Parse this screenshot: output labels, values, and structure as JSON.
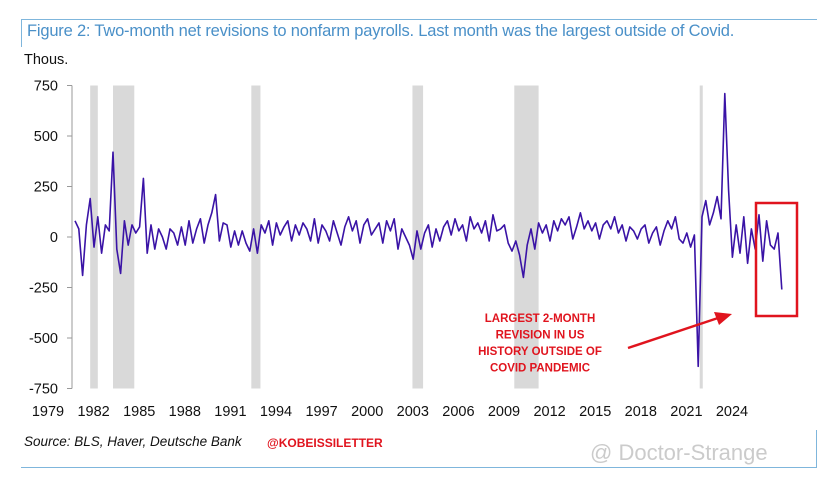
{
  "title": "Figure 2: Two-month net revisions to nonfarm payrolls. Last month was the largest outside of Covid.",
  "source": "Source: BLS, Haver, Deutsche Bank",
  "handle": "@KOBEISSILETTER",
  "watermark": "@ Doctor-Strange",
  "colors": {
    "line": "#3a13a6",
    "recession": "#d9d9d9",
    "annotation": "#e0141e",
    "title": "#4a90c8"
  },
  "chart_data": {
    "type": "line",
    "title": "Figure 2: Two-month net revisions to nonfarm payrolls. Last month was the largest outside of Covid.",
    "ylabel": "Thous.",
    "xlabel": "",
    "ylim": [
      -750,
      750
    ],
    "xlim": [
      1979,
      2025.5
    ],
    "yticks": [
      750,
      500,
      250,
      0,
      -250,
      -500,
      -750
    ],
    "ytick_labels": [
      "750",
      "500",
      "250",
      "0",
      "-250",
      "-500",
      "-750"
    ],
    "xticks": [
      "1979",
      "1982",
      "1985",
      "1988",
      "1991",
      "1994",
      "1997",
      "2000",
      "2003",
      "2006",
      "2009",
      "2012",
      "2015",
      "2018",
      "2021",
      "2024"
    ],
    "grid": false,
    "legend": "none",
    "recessions": [
      [
        1980.0,
        1980.5
      ],
      [
        1981.5,
        1982.9
      ],
      [
        1990.6,
        1991.2
      ],
      [
        2001.2,
        2001.9
      ],
      [
        2007.9,
        2009.5
      ],
      [
        2020.1,
        2020.3
      ]
    ],
    "x_start": 1979.0,
    "x_step": 0.25,
    "series": [
      {
        "name": "Two-month net revisions",
        "values": [
          80,
          40,
          -190,
          60,
          190,
          -50,
          100,
          -80,
          60,
          30,
          420,
          -60,
          -180,
          80,
          -40,
          60,
          20,
          50,
          290,
          -80,
          60,
          -60,
          40,
          0,
          -60,
          40,
          20,
          -40,
          50,
          -40,
          80,
          -30,
          40,
          90,
          -30,
          60,
          120,
          210,
          -20,
          70,
          60,
          -50,
          30,
          -40,
          30,
          -30,
          -70,
          40,
          -80,
          60,
          20,
          80,
          -40,
          70,
          10,
          50,
          80,
          -20,
          60,
          10,
          70,
          40,
          -20,
          90,
          -30,
          60,
          30,
          -20,
          80,
          20,
          -40,
          50,
          100,
          30,
          80,
          -30,
          60,
          90,
          10,
          40,
          70,
          -30,
          80,
          30,
          90,
          -60,
          40,
          0,
          -40,
          -110,
          30,
          -60,
          20,
          60,
          -50,
          40,
          -20,
          50,
          80,
          10,
          90,
          30,
          60,
          -20,
          100,
          40,
          70,
          20,
          80,
          -20,
          110,
          30,
          40,
          60,
          -30,
          -70,
          -20,
          -90,
          -200,
          -40,
          40,
          -60,
          70,
          20,
          60,
          -20,
          80,
          30,
          90,
          60,
          100,
          -10,
          50,
          120,
          40,
          80,
          30,
          70,
          -10,
          60,
          80,
          40,
          100,
          20,
          60,
          -20,
          50,
          30,
          -10,
          40,
          60,
          -30,
          20,
          50,
          -40,
          30,
          80,
          40,
          100,
          -10,
          -30,
          20,
          -50,
          10,
          -640,
          100,
          180,
          60,
          120,
          200,
          90,
          710,
          230,
          -100,
          60,
          -80,
          100,
          -130,
          40,
          -60,
          110,
          -120,
          80,
          -40,
          -60,
          20,
          -260
        ]
      }
    ],
    "annotations": [
      {
        "lines": [
          "LARGEST 2-MONTH",
          "REVISION IN US",
          "HISTORY OUTSIDE OF",
          "COVID PANDEMIC"
        ],
        "highlight_range_x": [
          2024.0,
          2026.5
        ],
        "highlight_range_y": [
          -390,
          170
        ]
      }
    ]
  }
}
